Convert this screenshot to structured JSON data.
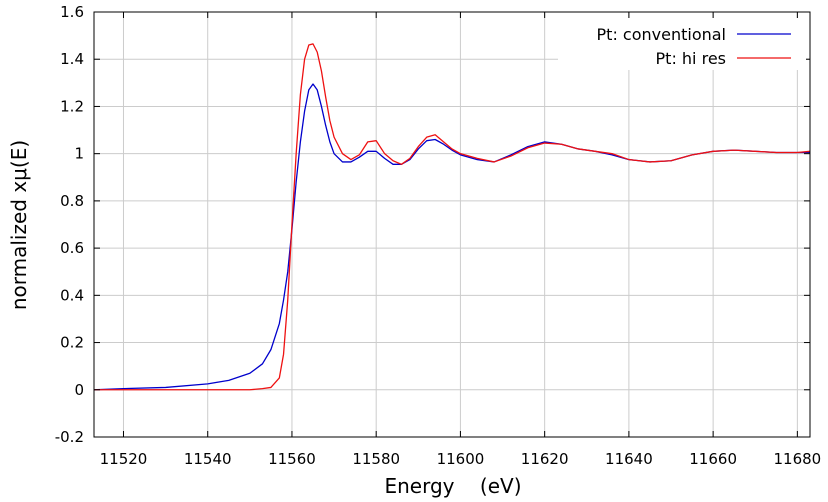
{
  "chart_data": {
    "type": "line",
    "title": "",
    "xlabel": "Energy    (eV)",
    "ylabel": "normalized xμ(E)",
    "xlim": [
      11513,
      11683
    ],
    "ylim": [
      -0.2,
      1.6
    ],
    "xticks": [
      11520,
      11540,
      11560,
      11580,
      11600,
      11620,
      11640,
      11660,
      11680
    ],
    "yticks": [
      -0.2,
      0,
      0.2,
      0.4,
      0.6,
      0.8,
      1,
      1.2,
      1.4,
      1.6
    ],
    "grid": true,
    "legend_position": "top-right",
    "series": [
      {
        "name": "Pt: conventional",
        "color": "#0000cc",
        "x": [
          11513,
          11520,
          11530,
          11540,
          11545,
          11550,
          11553,
          11555,
          11557,
          11558,
          11559,
          11560,
          11561,
          11562,
          11563,
          11564,
          11565,
          11566,
          11567,
          11568,
          11569,
          11570,
          11572,
          11574,
          11576,
          11578,
          11580,
          11582,
          11584,
          11586,
          11588,
          11590,
          11592,
          11594,
          11596,
          11598,
          11600,
          11604,
          11608,
          11612,
          11616,
          11620,
          11624,
          11628,
          11632,
          11636,
          11640,
          11645,
          11650,
          11655,
          11660,
          11665,
          11670,
          11675,
          11680,
          11683
        ],
        "y": [
          0.0,
          0.005,
          0.01,
          0.025,
          0.04,
          0.07,
          0.11,
          0.17,
          0.28,
          0.38,
          0.5,
          0.68,
          0.88,
          1.05,
          1.18,
          1.27,
          1.295,
          1.27,
          1.2,
          1.12,
          1.05,
          1.0,
          0.965,
          0.965,
          0.985,
          1.01,
          1.01,
          0.98,
          0.955,
          0.955,
          0.975,
          1.02,
          1.055,
          1.06,
          1.04,
          1.015,
          0.995,
          0.975,
          0.965,
          0.995,
          1.03,
          1.05,
          1.04,
          1.02,
          1.01,
          0.995,
          0.975,
          0.965,
          0.97,
          0.995,
          1.01,
          1.015,
          1.01,
          1.005,
          1.005,
          1.005
        ]
      },
      {
        "name": "Pt: hi res",
        "color": "#ee1111",
        "x": [
          11513,
          11520,
          11530,
          11540,
          11545,
          11550,
          11553,
          11555,
          11557,
          11558,
          11559,
          11560,
          11561,
          11562,
          11563,
          11564,
          11565,
          11566,
          11567,
          11568,
          11569,
          11570,
          11572,
          11574,
          11576,
          11578,
          11580,
          11582,
          11584,
          11586,
          11588,
          11590,
          11592,
          11594,
          11596,
          11598,
          11600,
          11604,
          11608,
          11612,
          11616,
          11620,
          11624,
          11628,
          11632,
          11636,
          11640,
          11645,
          11650,
          11655,
          11660,
          11665,
          11670,
          11675,
          11680,
          11683
        ],
        "y": [
          0.0,
          0.0,
          0.0,
          0.0,
          0.0,
          0.0,
          0.005,
          0.01,
          0.05,
          0.15,
          0.38,
          0.7,
          1.0,
          1.25,
          1.4,
          1.46,
          1.465,
          1.43,
          1.35,
          1.24,
          1.14,
          1.07,
          1.0,
          0.975,
          0.995,
          1.05,
          1.055,
          1.0,
          0.97,
          0.955,
          0.98,
          1.03,
          1.07,
          1.08,
          1.05,
          1.02,
          1.0,
          0.98,
          0.965,
          0.99,
          1.025,
          1.045,
          1.04,
          1.02,
          1.01,
          1.0,
          0.975,
          0.965,
          0.97,
          0.995,
          1.01,
          1.015,
          1.01,
          1.005,
          1.005,
          1.01
        ]
      }
    ]
  }
}
